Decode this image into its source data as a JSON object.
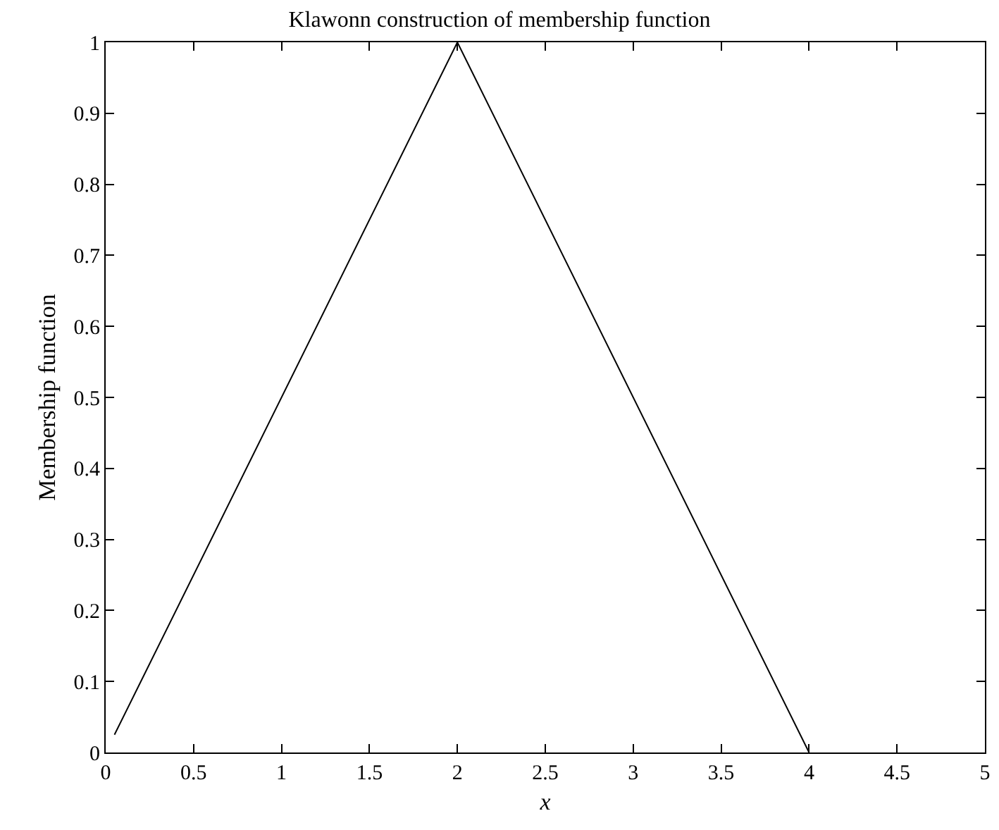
{
  "chart_data": {
    "type": "line",
    "title": "Klawonn construction of membership function",
    "xlabel": "x",
    "ylabel": "Membership function",
    "x": [
      0.05,
      2,
      4
    ],
    "series": [
      {
        "color": "#000000",
        "values": [
          0.025,
          1,
          0
        ]
      }
    ],
    "xlim": [
      0,
      5
    ],
    "xticks": [
      0,
      0.5,
      1,
      1.5,
      2,
      2.5,
      3,
      3.5,
      4,
      4.5,
      5
    ],
    "ylim": [
      0,
      1
    ],
    "yticks": [
      0,
      0.1,
      0.2,
      0.3,
      0.4,
      0.5,
      0.6,
      0.7,
      0.8,
      0.9,
      1
    ],
    "marker": "none",
    "line_style": "solid"
  }
}
